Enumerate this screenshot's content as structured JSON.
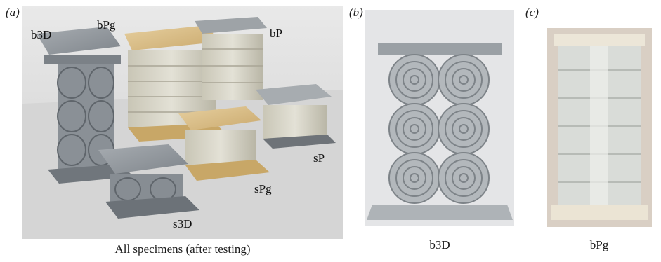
{
  "panels": {
    "a": {
      "letter": "(a)",
      "caption": "All specimens (after testing)",
      "specimen_labels": {
        "b3D": "b3D",
        "bPg": "bPg",
        "bP": "bP",
        "sP": "sP",
        "sPg": "sPg",
        "s3D": "s3D"
      }
    },
    "b": {
      "letter": "(b)",
      "caption": "b3D"
    },
    "c": {
      "letter": "(c)",
      "caption": "bPg"
    }
  },
  "colors": {
    "grey_plastic": "#8e949a",
    "light_grey_plastic": "#b9bec2",
    "wood_plate": "#d9c08e",
    "clear_resin": "#d4d2c6",
    "background_a": "#dcdcdc",
    "background_b": "#e6e7e9"
  }
}
